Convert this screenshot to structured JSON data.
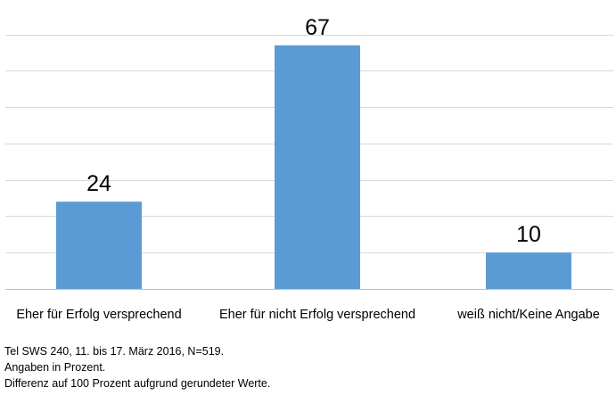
{
  "chart_data": {
    "type": "bar",
    "categories": [
      "Eher für Erfolg versprechend",
      "Eher für nicht Erfolg versprechend",
      "weiß nicht/Keine Angabe"
    ],
    "values": [
      24,
      67,
      10
    ],
    "ylim": [
      0,
      80
    ],
    "grid": true,
    "legend": "none",
    "colors": {
      "bar": "#5b9bd5",
      "grid": "#d9d9d9",
      "axis": "#bfbfbf"
    }
  },
  "footnotes": [
    "Tel SWS 240, 11. bis 17. März 2016, N=519.",
    "Angaben in Prozent.",
    "Differenz auf 100 Prozent aufgrund gerundeter Werte."
  ]
}
